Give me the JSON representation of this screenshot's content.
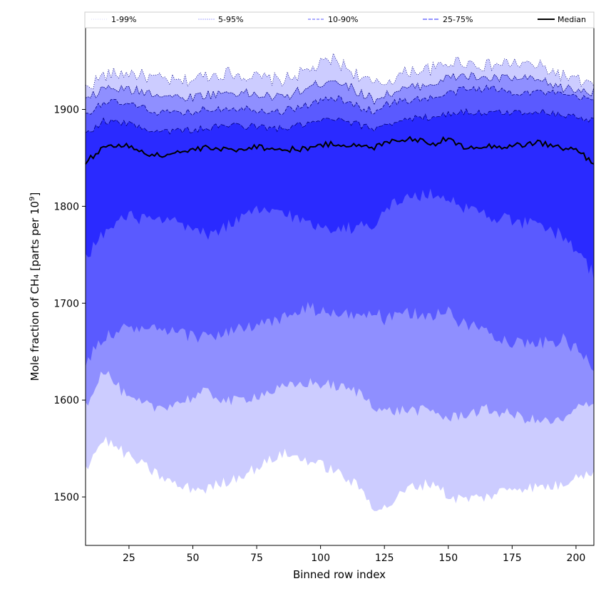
{
  "chart_data": {
    "type": "area",
    "xlabel": "Binned row index",
    "ylabel_main": "Mole fraction of CH₄ [parts per 10",
    "ylabel_sup": "9",
    "ylabel_tail": "]",
    "xlim": [
      8,
      207
    ],
    "ylim": [
      1450,
      1985
    ],
    "x_ticks": [
      25,
      50,
      75,
      100,
      125,
      150,
      175,
      200
    ],
    "y_ticks": [
      1500,
      1600,
      1700,
      1800,
      1900
    ],
    "grid": false,
    "legend_position": "top",
    "colors": {
      "band_1_99": "#ccccff",
      "band_5_95": "#8f8fff",
      "band_10_90": "#5a5aff",
      "band_25_75": "#2a2aff",
      "median": "#000000",
      "upper_lines": "#000080"
    },
    "legend": [
      {
        "key": "p1_99",
        "label": "1-99%"
      },
      {
        "key": "p5_95",
        "label": "5-95%"
      },
      {
        "key": "p10_90",
        "label": "10-90%"
      },
      {
        "key": "p25_75",
        "label": "25-75%"
      },
      {
        "key": "median",
        "label": "Median"
      }
    ],
    "anchor_x": [
      8,
      15,
      25,
      35,
      45,
      55,
      65,
      75,
      85,
      95,
      105,
      115,
      121,
      125,
      135,
      145,
      150,
      155,
      165,
      175,
      185,
      195,
      200,
      207
    ],
    "series": {
      "p99": [
        1922,
        1935,
        1938,
        1932,
        1928,
        1935,
        1938,
        1933,
        1930,
        1940,
        1952,
        1935,
        1925,
        1928,
        1940,
        1942,
        1948,
        1950,
        1945,
        1948,
        1945,
        1935,
        1930,
        1925
      ],
      "p95": [
        1908,
        1922,
        1920,
        1917,
        1912,
        1915,
        1918,
        1915,
        1912,
        1922,
        1932,
        1918,
        1910,
        1915,
        1922,
        1928,
        1932,
        1935,
        1932,
        1932,
        1930,
        1922,
        1920,
        1918
      ],
      "p90": [
        1895,
        1908,
        1905,
        1898,
        1895,
        1900,
        1902,
        1900,
        1898,
        1905,
        1912,
        1903,
        1898,
        1905,
        1910,
        1912,
        1916,
        1920,
        1922,
        1918,
        1918,
        1915,
        1912,
        1910
      ],
      "p75": [
        1875,
        1888,
        1885,
        1878,
        1878,
        1880,
        1884,
        1882,
        1880,
        1885,
        1890,
        1884,
        1880,
        1885,
        1890,
        1893,
        1895,
        1898,
        1896,
        1897,
        1898,
        1895,
        1892,
        1888
      ],
      "median": [
        1845,
        1862,
        1862,
        1852,
        1856,
        1860,
        1858,
        1862,
        1858,
        1860,
        1865,
        1862,
        1860,
        1867,
        1870,
        1865,
        1870,
        1862,
        1862,
        1862,
        1866,
        1860,
        1858,
        1845
      ],
      "p25": [
        1748,
        1772,
        1790,
        1785,
        1782,
        1770,
        1782,
        1795,
        1795,
        1782,
        1778,
        1778,
        1783,
        1798,
        1810,
        1812,
        1810,
        1800,
        1792,
        1785,
        1780,
        1770,
        1755,
        1730
      ],
      "p10": [
        1638,
        1665,
        1675,
        1672,
        1668,
        1665,
        1672,
        1675,
        1685,
        1695,
        1688,
        1688,
        1692,
        1682,
        1690,
        1688,
        1690,
        1680,
        1672,
        1660,
        1658,
        1662,
        1652,
        1635
      ],
      "p5": [
        1595,
        1632,
        1600,
        1592,
        1598,
        1608,
        1598,
        1605,
        1612,
        1618,
        1615,
        1608,
        1595,
        1588,
        1590,
        1588,
        1580,
        1585,
        1590,
        1585,
        1578,
        1578,
        1590,
        1600
      ],
      "p1": [
        1530,
        1560,
        1542,
        1525,
        1510,
        1508,
        1518,
        1530,
        1545,
        1538,
        1528,
        1510,
        1490,
        1488,
        1510,
        1515,
        1500,
        1498,
        1500,
        1510,
        1510,
        1512,
        1525,
        1522
      ]
    }
  }
}
